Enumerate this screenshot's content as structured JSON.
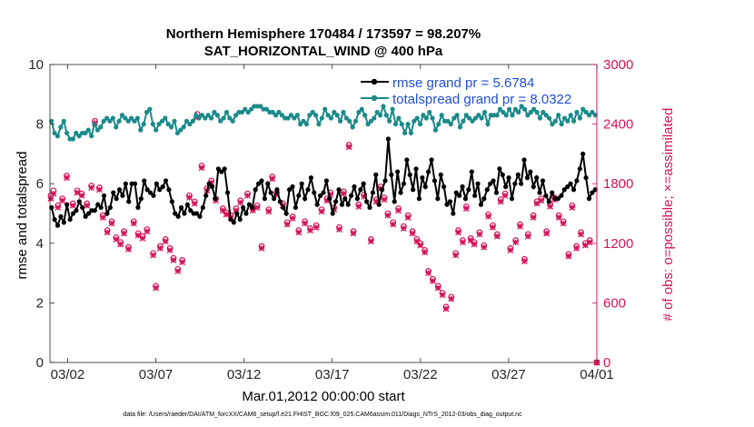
{
  "chart_data": {
    "type": "line",
    "title_line1": "Northern Hemisphere 170484 / 173597 = 98.207%",
    "title_line2": "SAT_HORIZONTAL_WIND @ 400 hPa",
    "xlabel": "Mar.01,2012 00:00:00 start",
    "ylabel_left": "rmse and totalspread",
    "ylabel_right": "# of obs: o=possible; ×=assimilated",
    "footer": "data file: /Users/raeder/DAI/ATM_forcXX/CAM6_setup/f.e21.FHIST_BGC.f09_025.CAM6assim.011/Diags_NTrS_2012-03/obs_diag_output.nc",
    "xlim": [
      0,
      31
    ],
    "ylim_left": [
      0,
      10
    ],
    "ylim_right": [
      0,
      3000
    ],
    "x_tick_positions": [
      1,
      6,
      11,
      16,
      21,
      26,
      31
    ],
    "x_tick_labels": [
      "03/02",
      "03/07",
      "03/12",
      "03/17",
      "03/22",
      "03/27",
      "04/01"
    ],
    "y_left_ticks": [
      0,
      2,
      4,
      6,
      8,
      10
    ],
    "y_left_tick_labels": [
      "0",
      "2",
      "4",
      "6",
      "8",
      "10"
    ],
    "y_right_ticks": [
      0,
      600,
      1200,
      1800,
      2400,
      3000
    ],
    "y_right_tick_labels": [
      "0",
      "600",
      "1200",
      "1800",
      "2400",
      "3000"
    ],
    "colors": {
      "rmse": "#000000",
      "totalspread": "#1b8a8a",
      "obs": "#d4145a",
      "legend_text": "#1f4fd6"
    },
    "series": [
      {
        "name": "rmse grand pr = 5.6784",
        "key": "rmse",
        "values": [
          5.2,
          4.8,
          4.6,
          4.9,
          4.7,
          5.3,
          4.8,
          5.0,
          5.1,
          5.4,
          5.2,
          4.9,
          5.0,
          5.1,
          5.1,
          5.3,
          5.2,
          5.6,
          5.0,
          5.2,
          5.7,
          5.5,
          5.8,
          5.6,
          6.0,
          5.4,
          6.0,
          6.0,
          5.2,
          5.5,
          6.1,
          5.8,
          5.7,
          5.6,
          6.0,
          5.8,
          5.9,
          6.1,
          5.8,
          5.4,
          5.0,
          4.9,
          5.2,
          5.0,
          5.3,
          5.1,
          5.0,
          5.0,
          4.9,
          5.2,
          5.6,
          6.0,
          5.9,
          5.5,
          6.5,
          6.4,
          6.5,
          5.7,
          4.8,
          4.7,
          5.0,
          4.8,
          5.2,
          5.0,
          5.3,
          5.2,
          5.8,
          6.0,
          6.1,
          5.5,
          6.0,
          5.7,
          5.5,
          5.8,
          5.4,
          5.2,
          5.0,
          5.8,
          5.9,
          5.2,
          5.6,
          6.0,
          5.5,
          5.8,
          6.2,
          5.7,
          5.3,
          5.6,
          5.7,
          6.1,
          5.5,
          5.0,
          5.4,
          5.8,
          5.3,
          5.5,
          5.3,
          5.6,
          5.9,
          5.5,
          5.8,
          6.0,
          5.4,
          5.2,
          5.7,
          6.3,
          5.3,
          5.8,
          6.1,
          7.5,
          6.3,
          5.4,
          6.4,
          5.7,
          6.0,
          6.8,
          6.3,
          5.8,
          6.5,
          5.5,
          6.2,
          5.9,
          6.4,
          6.8,
          6.1,
          5.5,
          6.3,
          5.9,
          5.3,
          5.4,
          5.0,
          5.7,
          5.6,
          5.9,
          5.5,
          5.8,
          6.4,
          5.6,
          6.0,
          5.3,
          5.5,
          5.8,
          6.0,
          6.1,
          5.7,
          6.5,
          6.3,
          5.9,
          6.2,
          5.5,
          6.0,
          6.3,
          6.0,
          6.8,
          6.2,
          6.4,
          5.9,
          6.2,
          5.7,
          6.1,
          5.6,
          5.4,
          5.7,
          5.5,
          5.5,
          5.6,
          5.8,
          5.9,
          6.0,
          5.8,
          6.1,
          6.5,
          7.0,
          6.2,
          5.5,
          5.7,
          5.8
        ]
      },
      {
        "name": "totalspread grand pr = 8.0322",
        "key": "totalspread",
        "values": [
          8.1,
          7.7,
          7.6,
          7.9,
          8.1,
          7.7,
          7.5,
          7.5,
          7.7,
          7.6,
          7.7,
          7.7,
          7.8,
          7.6,
          8.0,
          7.8,
          7.9,
          8.1,
          8.2,
          8.1,
          8.2,
          7.9,
          8.1,
          8.3,
          8.2,
          8.1,
          8.2,
          8.1,
          8.2,
          7.8,
          8.0,
          8.4,
          8.5,
          8.0,
          7.8,
          8.0,
          8.1,
          8.2,
          8.0,
          7.9,
          8.1,
          7.7,
          7.8,
          7.9,
          8.1,
          8.0,
          8.1,
          8.3,
          8.2,
          8.3,
          8.2,
          8.3,
          8.2,
          8.4,
          8.3,
          8.1,
          8.2,
          8.4,
          8.2,
          8.1,
          8.3,
          8.4,
          8.4,
          8.5,
          8.4,
          8.5,
          8.6,
          8.6,
          8.6,
          8.5,
          8.5,
          8.4,
          8.4,
          8.3,
          8.4,
          8.3,
          8.2,
          8.2,
          8.3,
          8.2,
          8.3,
          8.0,
          8.1,
          8.0,
          8.3,
          8.4,
          8.3,
          8.0,
          8.2,
          8.5,
          8.3,
          8.2,
          8.4,
          8.3,
          8.1,
          8.4,
          8.2,
          8.1,
          7.9,
          8.1,
          8.4,
          8.5,
          8.3,
          8.0,
          8.1,
          8.2,
          8.4,
          8.3,
          8.6,
          8.3,
          8.1,
          8.5,
          8.0,
          8.2,
          8.0,
          7.7,
          8.0,
          7.7,
          8.1,
          8.2,
          8.0,
          8.3,
          8.2,
          8.4,
          8.2,
          7.8,
          8.0,
          8.3,
          8.1,
          8.1,
          8.0,
          8.2,
          8.3,
          7.9,
          8.1,
          8.3,
          8.2,
          8.1,
          8.2,
          8.3,
          8.2,
          8.4,
          8.0,
          8.3,
          8.3,
          8.3,
          8.5,
          8.4,
          8.3,
          8.5,
          8.3,
          8.5,
          8.4,
          8.6,
          8.5,
          8.3,
          8.4,
          8.5,
          8.4,
          8.2,
          8.4,
          8.3,
          8.2,
          8.0,
          8.1,
          8.3,
          8.0,
          8.2,
          8.1,
          8.3,
          8.1,
          8.4,
          8.2,
          8.5,
          8.4,
          8.3,
          8.4,
          8.3
        ]
      }
    ],
    "obs_possible": [
      [
        0.05,
        1680
      ],
      [
        0.2,
        1730
      ],
      [
        0.45,
        1580
      ],
      [
        0.7,
        1650
      ],
      [
        0.95,
        1880
      ],
      [
        1.3,
        1600
      ],
      [
        1.55,
        1730
      ],
      [
        1.8,
        1700
      ],
      [
        2.1,
        1600
      ],
      [
        2.35,
        1780
      ],
      [
        2.55,
        2430
      ],
      [
        2.8,
        1760
      ],
      [
        3.0,
        1480
      ],
      [
        3.25,
        1330
      ],
      [
        3.5,
        1420
      ],
      [
        3.75,
        1260
      ],
      [
        4.0,
        1210
      ],
      [
        4.2,
        1320
      ],
      [
        4.45,
        1160
      ],
      [
        4.75,
        1420
      ],
      [
        5.0,
        1300
      ],
      [
        5.25,
        1270
      ],
      [
        5.5,
        1340
      ],
      [
        5.85,
        1100
      ],
      [
        6.0,
        770
      ],
      [
        6.25,
        1170
      ],
      [
        6.55,
        1240
      ],
      [
        6.8,
        1150
      ],
      [
        7.0,
        1050
      ],
      [
        7.25,
        940
      ],
      [
        7.5,
        1030
      ],
      [
        7.9,
        1680
      ],
      [
        8.2,
        1620
      ],
      [
        8.35,
        2500
      ],
      [
        8.6,
        1980
      ],
      [
        8.9,
        1750
      ],
      [
        9.15,
        1830
      ],
      [
        9.4,
        1650
      ],
      [
        9.8,
        1550
      ],
      [
        10.0,
        1510
      ],
      [
        10.25,
        1480
      ],
      [
        10.55,
        1550
      ],
      [
        10.8,
        1630
      ],
      [
        11.2,
        1700
      ],
      [
        11.5,
        1550
      ],
      [
        11.75,
        1580
      ],
      [
        12.0,
        1170
      ],
      [
        12.4,
        1540
      ],
      [
        12.6,
        1870
      ],
      [
        12.85,
        1710
      ],
      [
        13.2,
        1600
      ],
      [
        13.45,
        1410
      ],
      [
        13.75,
        1470
      ],
      [
        14.1,
        1330
      ],
      [
        14.45,
        1420
      ],
      [
        14.75,
        1350
      ],
      [
        15.1,
        1380
      ],
      [
        15.4,
        1540
      ],
      [
        15.7,
        1650
      ],
      [
        15.9,
        1710
      ],
      [
        16.1,
        1560
      ],
      [
        16.4,
        1360
      ],
      [
        16.65,
        1720
      ],
      [
        16.95,
        2190
      ],
      [
        17.2,
        1320
      ],
      [
        17.5,
        1590
      ],
      [
        17.8,
        1690
      ],
      [
        18.2,
        1240
      ],
      [
        18.5,
        1640
      ],
      [
        18.75,
        1770
      ],
      [
        18.95,
        1660
      ],
      [
        19.15,
        1500
      ],
      [
        19.45,
        1410
      ],
      [
        19.75,
        1550
      ],
      [
        20.05,
        1370
      ],
      [
        20.3,
        1480
      ],
      [
        20.55,
        1320
      ],
      [
        20.8,
        1240
      ],
      [
        21.0,
        1200
      ],
      [
        21.25,
        1130
      ],
      [
        21.45,
        920
      ],
      [
        21.7,
        840
      ],
      [
        22.0,
        770
      ],
      [
        22.25,
        700
      ],
      [
        22.45,
        560
      ],
      [
        22.75,
        660
      ],
      [
        23.0,
        1100
      ],
      [
        23.15,
        1330
      ],
      [
        23.4,
        1230
      ],
      [
        23.6,
        1570
      ],
      [
        23.85,
        1250
      ],
      [
        24.05,
        1210
      ],
      [
        24.35,
        1310
      ],
      [
        24.6,
        1180
      ],
      [
        24.85,
        1490
      ],
      [
        25.1,
        1380
      ],
      [
        25.35,
        1290
      ],
      [
        25.55,
        1640
      ],
      [
        25.8,
        1700
      ],
      [
        26.1,
        1150
      ],
      [
        26.4,
        1230
      ],
      [
        26.65,
        1390
      ],
      [
        26.9,
        1040
      ],
      [
        27.1,
        1290
      ],
      [
        27.4,
        1480
      ],
      [
        27.6,
        1620
      ],
      [
        27.85,
        1650
      ],
      [
        28.15,
        1320
      ],
      [
        28.35,
        1590
      ],
      [
        28.6,
        1660
      ],
      [
        28.85,
        1480
      ],
      [
        29.1,
        1420
      ],
      [
        29.4,
        1090
      ],
      [
        29.6,
        1580
      ],
      [
        29.85,
        1170
      ],
      [
        30.1,
        1310
      ],
      [
        30.35,
        1200
      ],
      [
        30.6,
        1230
      ],
      [
        31.0,
        0
      ]
    ],
    "obs_assimilated": [
      [
        0.05,
        1650
      ],
      [
        0.2,
        1700
      ],
      [
        0.45,
        1560
      ],
      [
        0.7,
        1630
      ],
      [
        0.95,
        1860
      ],
      [
        1.3,
        1580
      ],
      [
        1.55,
        1710
      ],
      [
        1.8,
        1680
      ],
      [
        2.1,
        1580
      ],
      [
        2.35,
        1760
      ],
      [
        2.55,
        2410
      ],
      [
        2.8,
        1740
      ],
      [
        3.0,
        1460
      ],
      [
        3.25,
        1310
      ],
      [
        3.5,
        1400
      ],
      [
        3.75,
        1240
      ],
      [
        4.0,
        1190
      ],
      [
        4.2,
        1300
      ],
      [
        4.45,
        1140
      ],
      [
        4.75,
        1400
      ],
      [
        5.0,
        1280
      ],
      [
        5.25,
        1250
      ],
      [
        5.5,
        1320
      ],
      [
        5.85,
        1080
      ],
      [
        6.0,
        750
      ],
      [
        6.25,
        1150
      ],
      [
        6.55,
        1220
      ],
      [
        6.8,
        1130
      ],
      [
        7.0,
        1030
      ],
      [
        7.25,
        920
      ],
      [
        7.5,
        1010
      ],
      [
        7.9,
        1660
      ],
      [
        8.2,
        1600
      ],
      [
        8.35,
        2470
      ],
      [
        8.6,
        1960
      ],
      [
        8.9,
        1730
      ],
      [
        9.15,
        1810
      ],
      [
        9.4,
        1630
      ],
      [
        9.8,
        1530
      ],
      [
        10.0,
        1490
      ],
      [
        10.25,
        1460
      ],
      [
        10.55,
        1530
      ],
      [
        10.8,
        1610
      ],
      [
        11.2,
        1680
      ],
      [
        11.5,
        1530
      ],
      [
        11.75,
        1560
      ],
      [
        12.0,
        1150
      ],
      [
        12.4,
        1520
      ],
      [
        12.6,
        1850
      ],
      [
        12.85,
        1690
      ],
      [
        13.2,
        1580
      ],
      [
        13.45,
        1390
      ],
      [
        13.75,
        1450
      ],
      [
        14.1,
        1310
      ],
      [
        14.45,
        1400
      ],
      [
        14.75,
        1330
      ],
      [
        15.1,
        1360
      ],
      [
        15.4,
        1520
      ],
      [
        15.7,
        1630
      ],
      [
        15.9,
        1690
      ],
      [
        16.1,
        1540
      ],
      [
        16.4,
        1340
      ],
      [
        16.65,
        1700
      ],
      [
        16.95,
        2170
      ],
      [
        17.2,
        1300
      ],
      [
        17.5,
        1570
      ],
      [
        17.8,
        1670
      ],
      [
        18.2,
        1220
      ],
      [
        18.5,
        1620
      ],
      [
        18.75,
        1750
      ],
      [
        18.95,
        1640
      ],
      [
        19.15,
        1480
      ],
      [
        19.45,
        1390
      ],
      [
        19.75,
        1530
      ],
      [
        20.05,
        1350
      ],
      [
        20.3,
        1460
      ],
      [
        20.55,
        1300
      ],
      [
        20.8,
        1220
      ],
      [
        21.0,
        1180
      ],
      [
        21.25,
        1110
      ],
      [
        21.45,
        900
      ],
      [
        21.7,
        820
      ],
      [
        22.0,
        750
      ],
      [
        22.25,
        680
      ],
      [
        22.45,
        540
      ],
      [
        22.75,
        640
      ],
      [
        23.0,
        1080
      ],
      [
        23.15,
        1310
      ],
      [
        23.4,
        1210
      ],
      [
        23.6,
        1550
      ],
      [
        23.85,
        1230
      ],
      [
        24.05,
        1190
      ],
      [
        24.35,
        1290
      ],
      [
        24.6,
        1160
      ],
      [
        24.85,
        1470
      ],
      [
        25.1,
        1360
      ],
      [
        25.35,
        1270
      ],
      [
        25.55,
        1620
      ],
      [
        25.8,
        1680
      ],
      [
        26.1,
        1130
      ],
      [
        26.4,
        1210
      ],
      [
        26.65,
        1370
      ],
      [
        26.9,
        1020
      ],
      [
        27.1,
        1270
      ],
      [
        27.4,
        1460
      ],
      [
        27.6,
        1600
      ],
      [
        27.85,
        1630
      ],
      [
        28.15,
        1300
      ],
      [
        28.35,
        1570
      ],
      [
        28.6,
        1640
      ],
      [
        28.85,
        1460
      ],
      [
        29.1,
        1400
      ],
      [
        29.4,
        1070
      ],
      [
        29.6,
        1560
      ],
      [
        29.85,
        1150
      ],
      [
        30.1,
        1290
      ],
      [
        30.35,
        1180
      ],
      [
        30.6,
        1210
      ],
      [
        31.0,
        0
      ]
    ]
  }
}
